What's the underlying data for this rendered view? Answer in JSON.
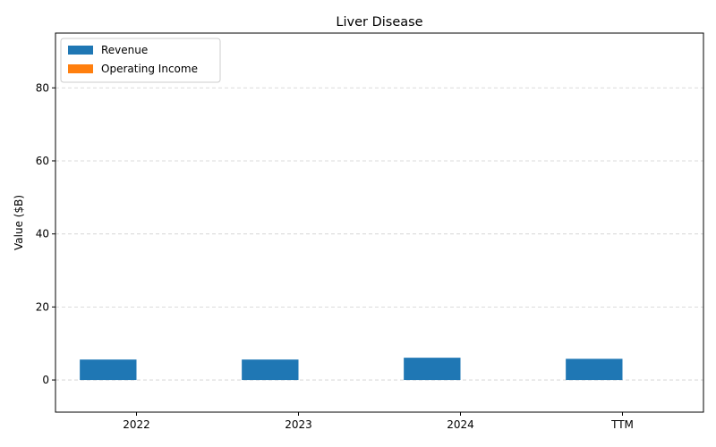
{
  "chart_data": {
    "type": "bar",
    "title": "Liver Disease",
    "xlabel": "",
    "ylabel": "Value ($B)",
    "categories": [
      "2022",
      "2023",
      "2024",
      "TTM"
    ],
    "series": [
      {
        "name": "Revenue",
        "color": "#1f77b4",
        "values": [
          5.6,
          5.6,
          6.1,
          5.8
        ]
      },
      {
        "name": "Operating Income",
        "color": "#ff7f0e",
        "values": [
          0,
          0,
          0,
          0
        ]
      }
    ],
    "ylim": [
      -8.8,
      95
    ],
    "yticks": [
      0,
      20,
      40,
      60,
      80
    ],
    "grid": true,
    "legend_position": "top-left"
  }
}
